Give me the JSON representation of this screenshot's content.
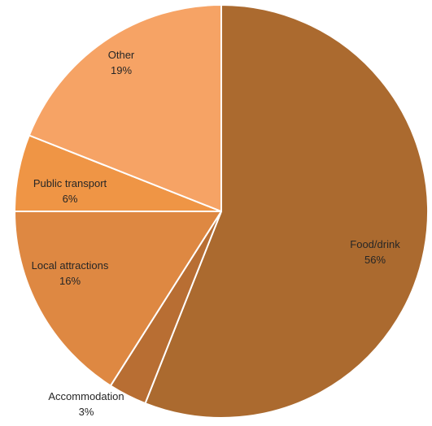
{
  "chart_data": {
    "type": "pie",
    "title": "",
    "start_angle_deg": 0,
    "direction": "clockwise",
    "slices": [
      {
        "label": "Food/drink",
        "value": 56,
        "value_label": "56%",
        "color": "#ab6a2f"
      },
      {
        "label": "Accommodation",
        "value": 3,
        "value_label": "3%",
        "color": "#b86e33"
      },
      {
        "label": "Local attractions",
        "value": 16,
        "value_label": "16%",
        "color": "#de8842"
      },
      {
        "label": "Public transport",
        "value": 6,
        "value_label": "6%",
        "color": "#ef9545"
      },
      {
        "label": "Other",
        "value": 19,
        "value_label": "19%",
        "color": "#f6a365"
      }
    ],
    "legend": "none",
    "slice_border_color": "#ffffff"
  }
}
